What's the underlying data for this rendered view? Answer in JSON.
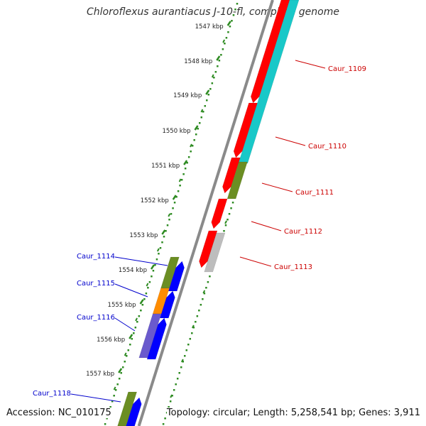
{
  "title": "Chloroflexus aurantiacus J-10-fl, complete genome",
  "accession_text": "Accession: NC_010175",
  "topology_text": "Topology: circular; Length: 5,258,541 bp; Genes: 3,911",
  "colors": {
    "backbone": "#8a8a8a",
    "ticks": "#2e8b22",
    "forward_label": "#cc0000",
    "reverse_label": "#0000cc",
    "red": "#ff0000",
    "cyan": "#19c8c8",
    "olive": "#6b8e23",
    "gray": "#bdbdbd",
    "blue": "#0000ff",
    "orange": "#ff8c00",
    "slate": "#6a5acd"
  },
  "scale": {
    "unit": "kbp",
    "labels": [
      "1547 kbp",
      "1548 kbp",
      "1549 kbp",
      "1550 kbp",
      "1551 kbp",
      "1552 kbp",
      "1553 kbp",
      "1554 kbp",
      "1555 kbp",
      "1556 kbp",
      "1557 kbp"
    ]
  },
  "gene_labels_forward": [
    {
      "name": "Caur_1109"
    },
    {
      "name": "Caur_1110"
    },
    {
      "name": "Caur_1111"
    },
    {
      "name": "Caur_1112"
    },
    {
      "name": "Caur_1113"
    }
  ],
  "gene_labels_reverse": [
    {
      "name": "Caur_1114"
    },
    {
      "name": "Caur_1115"
    },
    {
      "name": "Caur_1116"
    },
    {
      "name": "Caur_1118"
    }
  ]
}
